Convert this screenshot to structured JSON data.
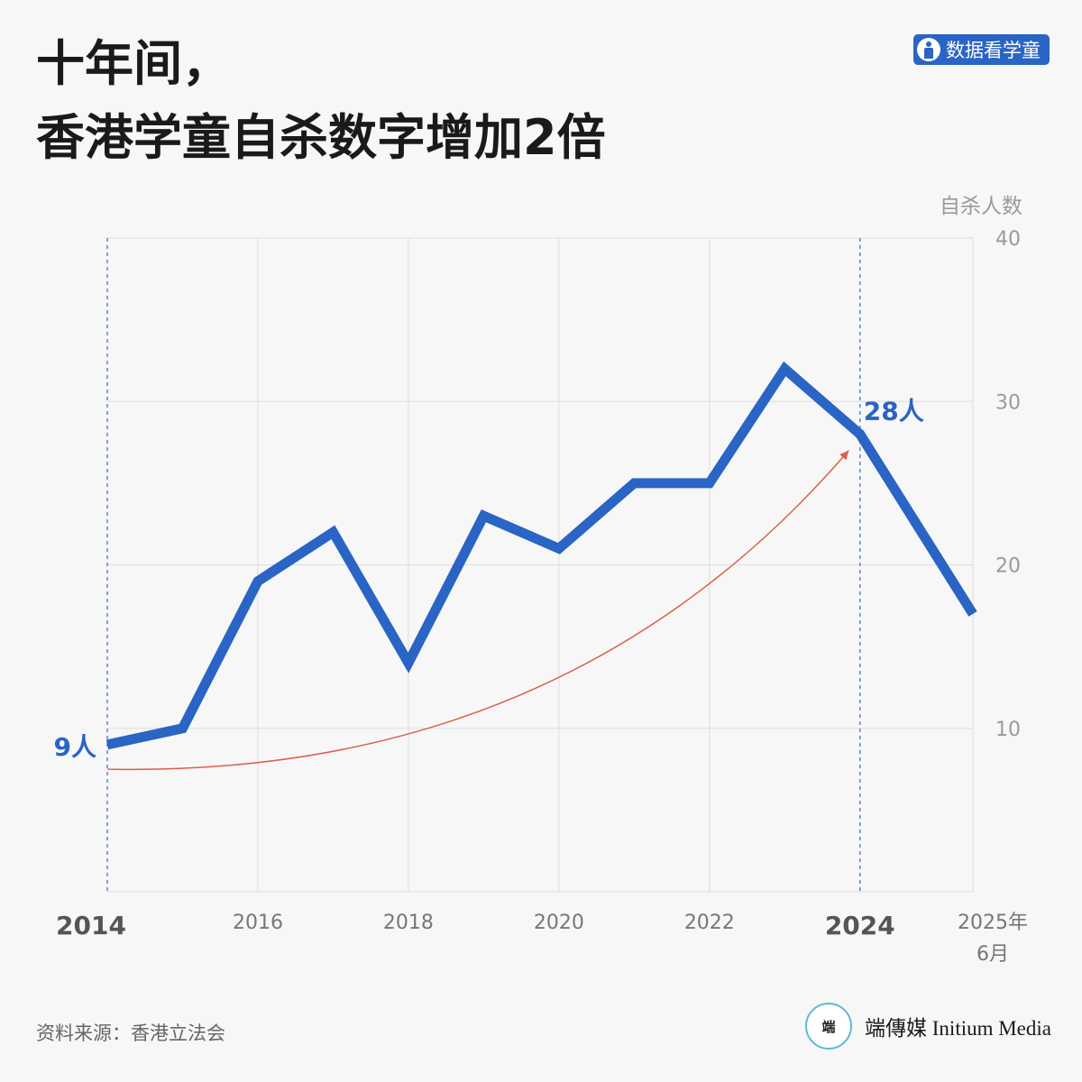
{
  "title": {
    "line1": "十年间，",
    "line2": "香港学童自杀数字增加2倍"
  },
  "badge": {
    "label": "数据看学童",
    "icon": "child-figure-icon"
  },
  "source": "资料来源：香港立法会",
  "logo": {
    "mark": "端",
    "text": "端傳媒 Initium Media"
  },
  "chart_data": {
    "type": "line",
    "ylabel": "自杀人数",
    "ylim": [
      0,
      40
    ],
    "xlim": [
      2014,
      2025.5
    ],
    "yticks": [
      10,
      20,
      30,
      40
    ],
    "xticks": [
      {
        "value": 2014,
        "label": "2014",
        "bold": true
      },
      {
        "value": 2016,
        "label": "2016",
        "bold": false
      },
      {
        "value": 2018,
        "label": "2018",
        "bold": false
      },
      {
        "value": 2020,
        "label": "2020",
        "bold": false
      },
      {
        "value": 2022,
        "label": "2022",
        "bold": false
      },
      {
        "value": 2024,
        "label": "2024",
        "bold": true
      },
      {
        "value": 2025.5,
        "label": "2025年",
        "label2": "6月",
        "bold": false
      }
    ],
    "grid": true,
    "axis_side": "right",
    "series": [
      {
        "x": [
          2014,
          2015,
          2016,
          2017,
          2018,
          2019,
          2020,
          2021,
          2022,
          2023,
          2024,
          2025.5
        ],
        "y": [
          9,
          10,
          19,
          22,
          14,
          23,
          21,
          25,
          25,
          32,
          28,
          17
        ],
        "color": "#2a64c5"
      }
    ],
    "annotations": [
      {
        "x": 2014,
        "y": 9,
        "text": "9人",
        "position": "left"
      },
      {
        "x": 2024,
        "y": 28,
        "text": "28人",
        "position": "right"
      }
    ],
    "reference_lines_x": [
      2014,
      2024
    ],
    "trend_arrow": {
      "from": {
        "x": 2014,
        "y": 7.5
      },
      "to": {
        "x": 2023.85,
        "y": 27
      },
      "color": "#d9604a"
    }
  }
}
